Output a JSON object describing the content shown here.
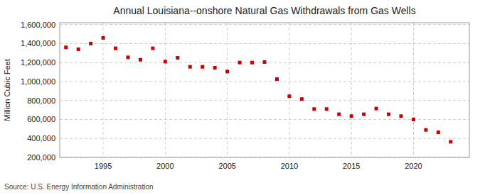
{
  "chart_data": {
    "type": "scatter",
    "title": "Annual Louisiana--onshore Natural Gas Withdrawals from Gas Wells",
    "ylabel": "Million Cubic Feet",
    "annotation": "Source: U.S. Energy Information Administration",
    "x": [
      1992,
      1993,
      1994,
      1995,
      1996,
      1997,
      1998,
      1999,
      2000,
      2001,
      2002,
      2003,
      2004,
      2005,
      2006,
      2007,
      2008,
      2009,
      2010,
      2011,
      2012,
      2013,
      2014,
      2015,
      2016,
      2017,
      2018,
      2019,
      2020,
      2021,
      2022,
      2023
    ],
    "values": [
      1360000,
      1340000,
      1400000,
      1460000,
      1350000,
      1255000,
      1230000,
      1350000,
      1210000,
      1250000,
      1155000,
      1155000,
      1145000,
      1105000,
      1200000,
      1200000,
      1205000,
      1025000,
      845000,
      815000,
      710000,
      710000,
      655000,
      635000,
      655000,
      715000,
      655000,
      635000,
      600000,
      490000,
      465000,
      365000
    ],
    "color": "#cc0000",
    "marker": "square",
    "xlim": [
      1991.5,
      2024.5
    ],
    "xticks": [
      1995,
      2000,
      2005,
      2010,
      2015,
      2020
    ],
    "ylim": [
      200000,
      1620000
    ],
    "yticks": [
      {
        "value": 200000,
        "label": "200,000"
      },
      {
        "value": 400000,
        "label": "400,000"
      },
      {
        "value": 600000,
        "label": "600,000"
      },
      {
        "value": 800000,
        "label": "800,000"
      },
      {
        "value": 1000000,
        "label": "1,000,000"
      },
      {
        "value": 1200000,
        "label": "1,200,000"
      },
      {
        "value": 1400000,
        "label": "1,400,000"
      },
      {
        "value": 1600000,
        "label": "1,600,000"
      }
    ],
    "grid": true
  }
}
